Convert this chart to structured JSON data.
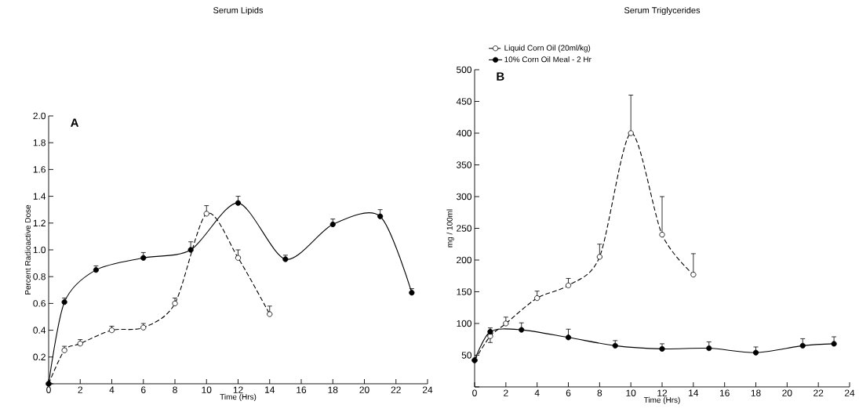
{
  "chart_data": [
    {
      "type": "line",
      "title": "Serum Lipids",
      "xlabel": "Time (Hrs)",
      "ylabel": "Percent Radioactive Dose",
      "annotations": [
        "A"
      ],
      "xlim": [
        0,
        24
      ],
      "xticks": [
        0,
        2,
        4,
        6,
        8,
        10,
        12,
        14,
        16,
        18,
        20,
        22,
        24
      ],
      "ylim": [
        0,
        2.0
      ],
      "yticks": [
        {
          "value": 0,
          "label": null
        },
        0.2,
        0.4,
        0.6,
        0.8,
        {
          "value": 1.0,
          "label": "1.0"
        },
        1.2,
        1.4,
        1.6,
        1.8,
        {
          "value": 2.0,
          "label": "2.0"
        }
      ],
      "marker": "circle",
      "series": [
        {
          "color": "#000000",
          "line_style": "dashed",
          "x": [
            0,
            1,
            2,
            4,
            6,
            8,
            10,
            12,
            14
          ],
          "values": [
            0,
            0.25,
            0.3,
            0.4,
            0.42,
            0.6,
            1.27,
            0.94,
            0.52
          ],
          "errors": [
            null,
            [
              0.25,
              0.28
            ],
            [
              0.3,
              0.33
            ],
            [
              0.4,
              0.43
            ],
            [
              0.42,
              0.45
            ],
            [
              0.6,
              0.64
            ],
            [
              1.27,
              1.33
            ],
            [
              0.94,
              1.0
            ],
            [
              0.52,
              0.58
            ]
          ]
        },
        {
          "color": "#000000",
          "line_style": "solid",
          "x": [
            0,
            1,
            3,
            6,
            9,
            12,
            15,
            18,
            21,
            23
          ],
          "values": [
            0,
            0.61,
            0.85,
            0.94,
            1.0,
            1.35,
            0.93,
            1.19,
            1.25,
            0.68
          ],
          "errors": [
            null,
            [
              0.61,
              0.64
            ],
            [
              0.85,
              0.88
            ],
            [
              0.94,
              0.98
            ],
            [
              1.0,
              1.06
            ],
            [
              1.35,
              1.4
            ],
            [
              0.93,
              0.96
            ],
            [
              1.19,
              1.23
            ],
            [
              1.25,
              1.3
            ],
            [
              0.68,
              0.71
            ]
          ]
        }
      ]
    },
    {
      "type": "line",
      "title": "Serum Triglycerides",
      "xlabel": "Time (Hrs)",
      "ylabel": "mg / 100ml",
      "annotations": [
        "B"
      ],
      "xlim": [
        0,
        24
      ],
      "xticks": [
        0,
        2,
        4,
        6,
        8,
        10,
        12,
        14,
        16,
        18,
        20,
        22,
        24
      ],
      "ylim": [
        0,
        500
      ],
      "yticks": [
        {
          "value": 0,
          "label": null
        },
        50,
        100,
        150,
        200,
        250,
        300,
        350,
        400,
        450,
        500
      ],
      "marker": "circle",
      "legend": "top left",
      "series": [
        {
          "name": "Liquid Corn Oil (20ml/kg)",
          "color": "#000000",
          "line_style": "dashed",
          "x": [
            0,
            1,
            2,
            4,
            6,
            8,
            10,
            12,
            14
          ],
          "values": [
            42,
            80,
            100,
            140,
            160,
            205,
            400,
            240,
            177
          ],
          "errors": [
            null,
            [
              70,
              80
            ],
            [
              100,
              110
            ],
            [
              140,
              151
            ],
            [
              160,
              171
            ],
            [
              205,
              225
            ],
            [
              400,
              460
            ],
            [
              240,
              300
            ],
            [
              177,
              210
            ]
          ]
        },
        {
          "name": "10% Corn Oil Meal - 2 Hr",
          "color": "#000000",
          "line_style": "solid",
          "x": [
            0,
            1,
            3,
            6,
            9,
            12,
            15,
            18,
            21,
            23
          ],
          "values": [
            42,
            87,
            90,
            78,
            65,
            60,
            61,
            54,
            65,
            68
          ],
          "errors": [
            null,
            [
              87,
              93
            ],
            [
              90,
              101
            ],
            [
              78,
              91
            ],
            [
              65,
              73
            ],
            [
              60,
              68
            ],
            [
              61,
              71
            ],
            [
              54,
              63
            ],
            [
              65,
              76
            ],
            [
              68,
              79
            ]
          ]
        }
      ]
    }
  ]
}
